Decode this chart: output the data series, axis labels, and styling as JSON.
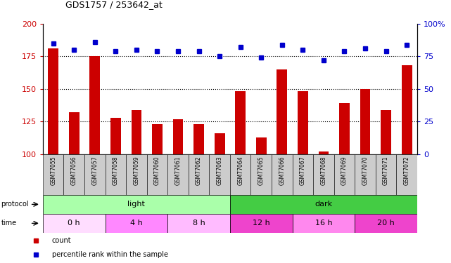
{
  "title": "GDS1757 / 253642_at",
  "samples": [
    "GSM77055",
    "GSM77056",
    "GSM77057",
    "GSM77058",
    "GSM77059",
    "GSM77060",
    "GSM77061",
    "GSM77062",
    "GSM77063",
    "GSM77064",
    "GSM77065",
    "GSM77066",
    "GSM77067",
    "GSM77068",
    "GSM77069",
    "GSM77070",
    "GSM77071",
    "GSM77072"
  ],
  "bar_values": [
    181,
    132,
    175,
    128,
    134,
    123,
    127,
    123,
    116,
    148,
    113,
    165,
    148,
    102,
    139,
    150,
    134,
    168
  ],
  "dot_values": [
    85,
    80,
    86,
    79,
    80,
    79,
    79,
    79,
    75,
    82,
    74,
    84,
    80,
    72,
    79,
    81,
    79,
    84
  ],
  "bar_color": "#cc0000",
  "dot_color": "#0000cc",
  "ylim_left": [
    100,
    200
  ],
  "ylim_right": [
    0,
    100
  ],
  "yticks_left": [
    100,
    125,
    150,
    175,
    200
  ],
  "yticks_right": [
    0,
    25,
    50,
    75,
    100
  ],
  "ytick_labels_right": [
    "0",
    "25",
    "50",
    "75",
    "100%"
  ],
  "protocol_groups": [
    {
      "label": "light",
      "start": 0,
      "end": 9,
      "color": "#aaffaa"
    },
    {
      "label": "dark",
      "start": 9,
      "end": 18,
      "color": "#44cc44"
    }
  ],
  "time_groups": [
    {
      "label": "0 h",
      "start": 0,
      "end": 3,
      "color": "#ffddff"
    },
    {
      "label": "4 h",
      "start": 3,
      "end": 6,
      "color": "#ff88ff"
    },
    {
      "label": "8 h",
      "start": 6,
      "end": 9,
      "color": "#ffbbff"
    },
    {
      "label": "12 h",
      "start": 9,
      "end": 12,
      "color": "#ee44cc"
    },
    {
      "label": "16 h",
      "start": 12,
      "end": 15,
      "color": "#ff88ee"
    },
    {
      "label": "20 h",
      "start": 15,
      "end": 18,
      "color": "#ee44cc"
    }
  ],
  "legend_items": [
    {
      "label": "count",
      "color": "#cc0000"
    },
    {
      "label": "percentile rank within the sample",
      "color": "#0000cc"
    }
  ],
  "gridlines": [
    125,
    150,
    175
  ]
}
